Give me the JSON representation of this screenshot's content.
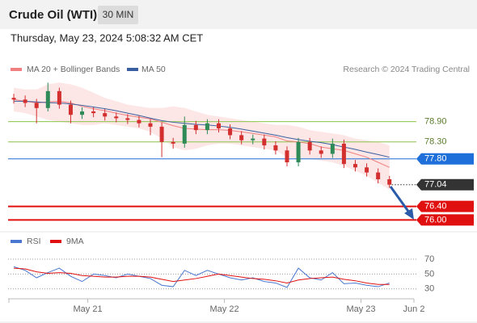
{
  "header": {
    "title": "Crude Oil (WTI)",
    "interval": "30 MIN",
    "timestamp": "Thursday, May 23, 2024 5:08:32 AM CET"
  },
  "chart_data": [
    {
      "type": "candlestick",
      "source": "Research © 2024 Trading Central",
      "xlim": [
        -14,
        57.3
      ],
      "ylim": [
        75.7,
        80.2
      ],
      "up_color": "#2e8b57",
      "down_color": "#d32f2f",
      "x": [
        -13,
        -11,
        -9,
        -7,
        -5,
        -3,
        -1,
        1,
        3,
        5,
        7,
        9,
        11,
        13,
        15,
        17,
        19,
        21,
        23,
        25,
        27,
        29,
        31,
        33,
        35,
        37,
        39,
        41,
        43,
        45,
        47,
        49,
        51,
        53
      ],
      "open": [
        79.6,
        79.55,
        79.45,
        79.3,
        79.8,
        79.4,
        79.1,
        79.2,
        79.15,
        79.05,
        79.0,
        78.95,
        78.85,
        78.75,
        78.3,
        78.25,
        78.8,
        78.65,
        78.85,
        78.7,
        78.5,
        78.35,
        78.4,
        78.2,
        78.05,
        77.7,
        78.3,
        78.05,
        77.95,
        78.25,
        77.65,
        77.55,
        77.4,
        77.2
      ],
      "high": [
        79.72,
        79.67,
        79.57,
        80.05,
        79.9,
        79.52,
        79.32,
        79.32,
        79.27,
        79.17,
        79.12,
        79.07,
        78.97,
        78.87,
        78.42,
        79.05,
        78.92,
        78.97,
        78.97,
        78.82,
        78.62,
        78.52,
        78.52,
        78.32,
        78.17,
        78.42,
        78.42,
        78.17,
        78.4,
        78.37,
        77.77,
        77.67,
        77.52,
        77.3
      ],
      "low": [
        79.43,
        79.33,
        78.85,
        79.2,
        79.28,
        78.85,
        78.98,
        79.03,
        78.93,
        78.88,
        78.83,
        78.73,
        78.5,
        77.85,
        78.1,
        78.13,
        78.53,
        78.53,
        78.58,
        78.38,
        78.23,
        78.23,
        78.08,
        77.93,
        77.58,
        77.58,
        77.93,
        77.83,
        77.83,
        77.53,
        77.43,
        77.28,
        77.08,
        76.95
      ],
      "close": [
        79.55,
        79.45,
        79.3,
        79.8,
        79.4,
        79.1,
        79.2,
        79.15,
        79.05,
        79.0,
        78.95,
        78.85,
        78.75,
        78.3,
        78.25,
        78.8,
        78.65,
        78.85,
        78.7,
        78.5,
        78.35,
        78.4,
        78.2,
        78.05,
        77.7,
        78.3,
        78.05,
        77.95,
        78.25,
        77.65,
        77.55,
        77.4,
        77.2,
        77.04
      ],
      "series": [
        {
          "name": "MA 20 + Bollinger Bands",
          "color": "#f08080",
          "band_color": "#fde0e0",
          "values": [
            79.55,
            79.5,
            79.45,
            79.48,
            79.5,
            79.45,
            79.35,
            79.28,
            79.22,
            79.15,
            79.08,
            79.03,
            78.98,
            78.88,
            78.78,
            78.7,
            78.68,
            78.66,
            78.66,
            78.64,
            78.6,
            78.55,
            78.5,
            78.45,
            78.33,
            78.3,
            78.25,
            78.15,
            78.1,
            78.05,
            77.95,
            77.85,
            77.7,
            77.55
          ],
          "upper": [
            79.9,
            79.85,
            79.85,
            80.0,
            80.05,
            80.0,
            79.9,
            79.75,
            79.6,
            79.5,
            79.4,
            79.35,
            79.3,
            79.3,
            79.35,
            79.3,
            79.2,
            79.1,
            79.05,
            79.0,
            78.95,
            78.9,
            78.85,
            78.8,
            78.8,
            78.75,
            78.65,
            78.6,
            78.55,
            78.5,
            78.4,
            78.35,
            78.3,
            78.2
          ],
          "lower": [
            79.2,
            79.15,
            79.05,
            78.95,
            78.9,
            78.85,
            78.8,
            78.8,
            78.85,
            78.8,
            78.75,
            78.7,
            78.6,
            78.4,
            78.15,
            78.05,
            78.1,
            78.2,
            78.25,
            78.25,
            78.2,
            78.15,
            78.1,
            78.05,
            77.85,
            77.8,
            77.8,
            77.75,
            77.7,
            77.6,
            77.45,
            77.3,
            77.1,
            76.9
          ]
        },
        {
          "name": "MA 50",
          "color": "#3a5fa0",
          "values": [
            79.5,
            79.5,
            79.48,
            79.46,
            79.45,
            79.42,
            79.38,
            79.33,
            79.28,
            79.22,
            79.15,
            79.08,
            79.0,
            78.93,
            78.88,
            78.85,
            78.82,
            78.8,
            78.77,
            78.73,
            78.68,
            78.62,
            78.56,
            78.5,
            78.43,
            78.37,
            78.32,
            78.28,
            78.22,
            78.15,
            78.08,
            78.0,
            77.93,
            77.85
          ]
        }
      ],
      "levels": [
        {
          "value": 78.9,
          "label": "78.90",
          "color": "#8bc34a",
          "boxed": false
        },
        {
          "value": 78.3,
          "label": "78.30",
          "color": "#8bc34a",
          "boxed": false
        },
        {
          "value": 77.8,
          "label": "77.80",
          "color": "#1e6fd9",
          "boxed": true
        },
        {
          "value": 77.04,
          "label": "77.04",
          "color": "#333333",
          "boxed": true
        },
        {
          "value": 76.4,
          "label": "76.40",
          "color": "#e01010",
          "boxed": true
        },
        {
          "value": 76.0,
          "label": "76.00",
          "color": "#e01010",
          "boxed": true
        }
      ]
    },
    {
      "type": "line",
      "xlim": [
        -14,
        57.3
      ],
      "ylim": [
        20,
        82
      ],
      "yticks": [
        70,
        50,
        30
      ],
      "xticks": [
        {
          "value": 0,
          "label": "May 21"
        },
        {
          "value": 24,
          "label": "May 22"
        },
        {
          "value": 48,
          "label": "May 23"
        },
        {
          "value": 57.3,
          "label": "Jun 2"
        }
      ],
      "x": [
        -13,
        -11,
        -9,
        -7,
        -5,
        -3,
        -1,
        1,
        3,
        5,
        7,
        9,
        11,
        13,
        15,
        17,
        19,
        21,
        23,
        25,
        27,
        29,
        31,
        33,
        35,
        37,
        39,
        41,
        43,
        45,
        47,
        49,
        51,
        53
      ],
      "series": [
        {
          "name": "RSI",
          "color": "#4a78d0",
          "values": [
            60,
            55,
            45,
            52,
            58,
            47,
            40,
            50,
            48,
            45,
            50,
            47,
            44,
            35,
            33,
            55,
            48,
            55,
            50,
            45,
            42,
            45,
            40,
            38,
            32,
            58,
            45,
            42,
            52,
            37,
            38,
            35,
            33,
            38
          ]
        },
        {
          "name": "9MA",
          "color": "#e01010",
          "values": [
            58,
            57,
            53,
            51,
            52,
            51,
            48,
            47,
            46,
            46,
            47,
            47,
            46,
            43,
            40,
            42,
            44,
            47,
            50,
            48,
            46,
            44,
            43,
            41,
            38,
            42,
            44,
            45,
            46,
            43,
            41,
            38,
            36,
            36
          ]
        }
      ]
    }
  ]
}
